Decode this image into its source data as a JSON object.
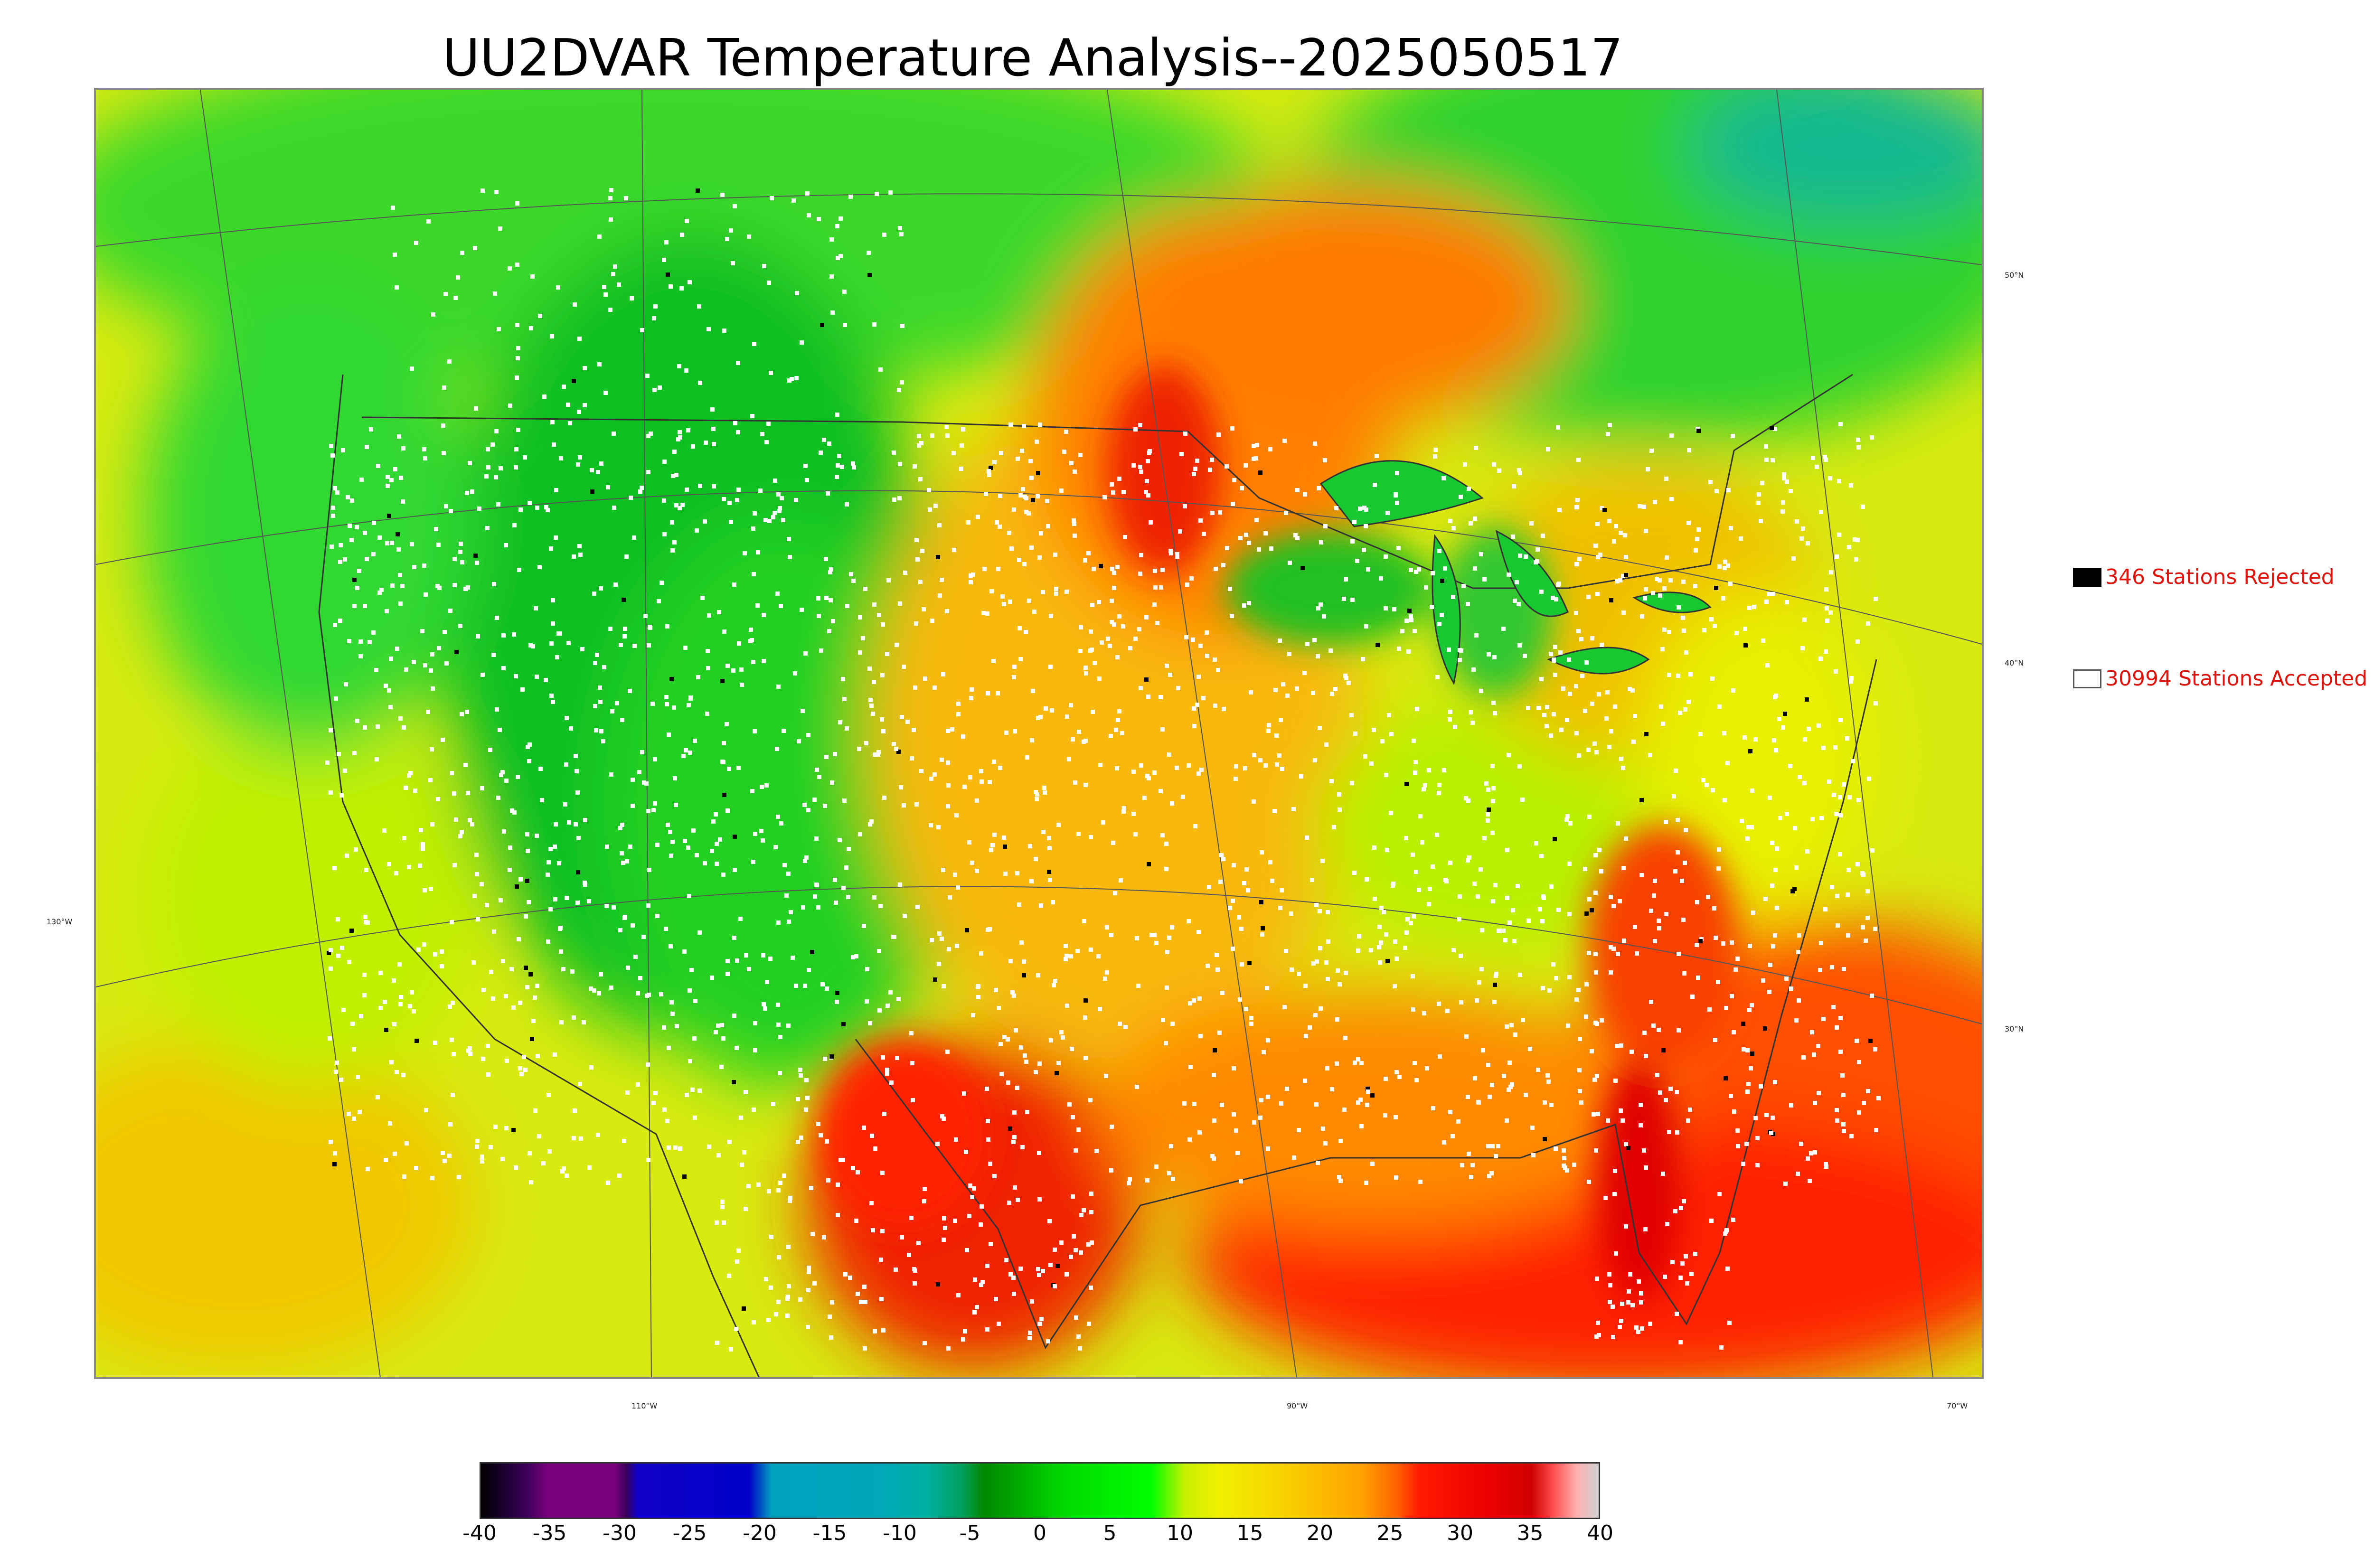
{
  "title": "UU2DVAR Temperature Analysis--2025050517",
  "map": {
    "latitude_labels": [
      "50°N",
      "40°N",
      "30°N"
    ],
    "longitude_labels": [
      "130°W",
      "110°W",
      "90°W",
      "70°W"
    ]
  },
  "legend": {
    "rejected_label": "346 Stations Rejected",
    "accepted_label": "30994 Stations Accepted",
    "rejected_color": "#000000",
    "accepted_color": "#ffffff",
    "text_color": "#e0120a"
  },
  "colorbar": {
    "ticks": [
      "-40",
      "-35",
      "-30",
      "-25",
      "-20",
      "-15",
      "-10",
      "-5",
      "0",
      "5",
      "10",
      "15",
      "20",
      "25",
      "30",
      "35",
      "40"
    ],
    "min": -40,
    "max": 40
  }
}
